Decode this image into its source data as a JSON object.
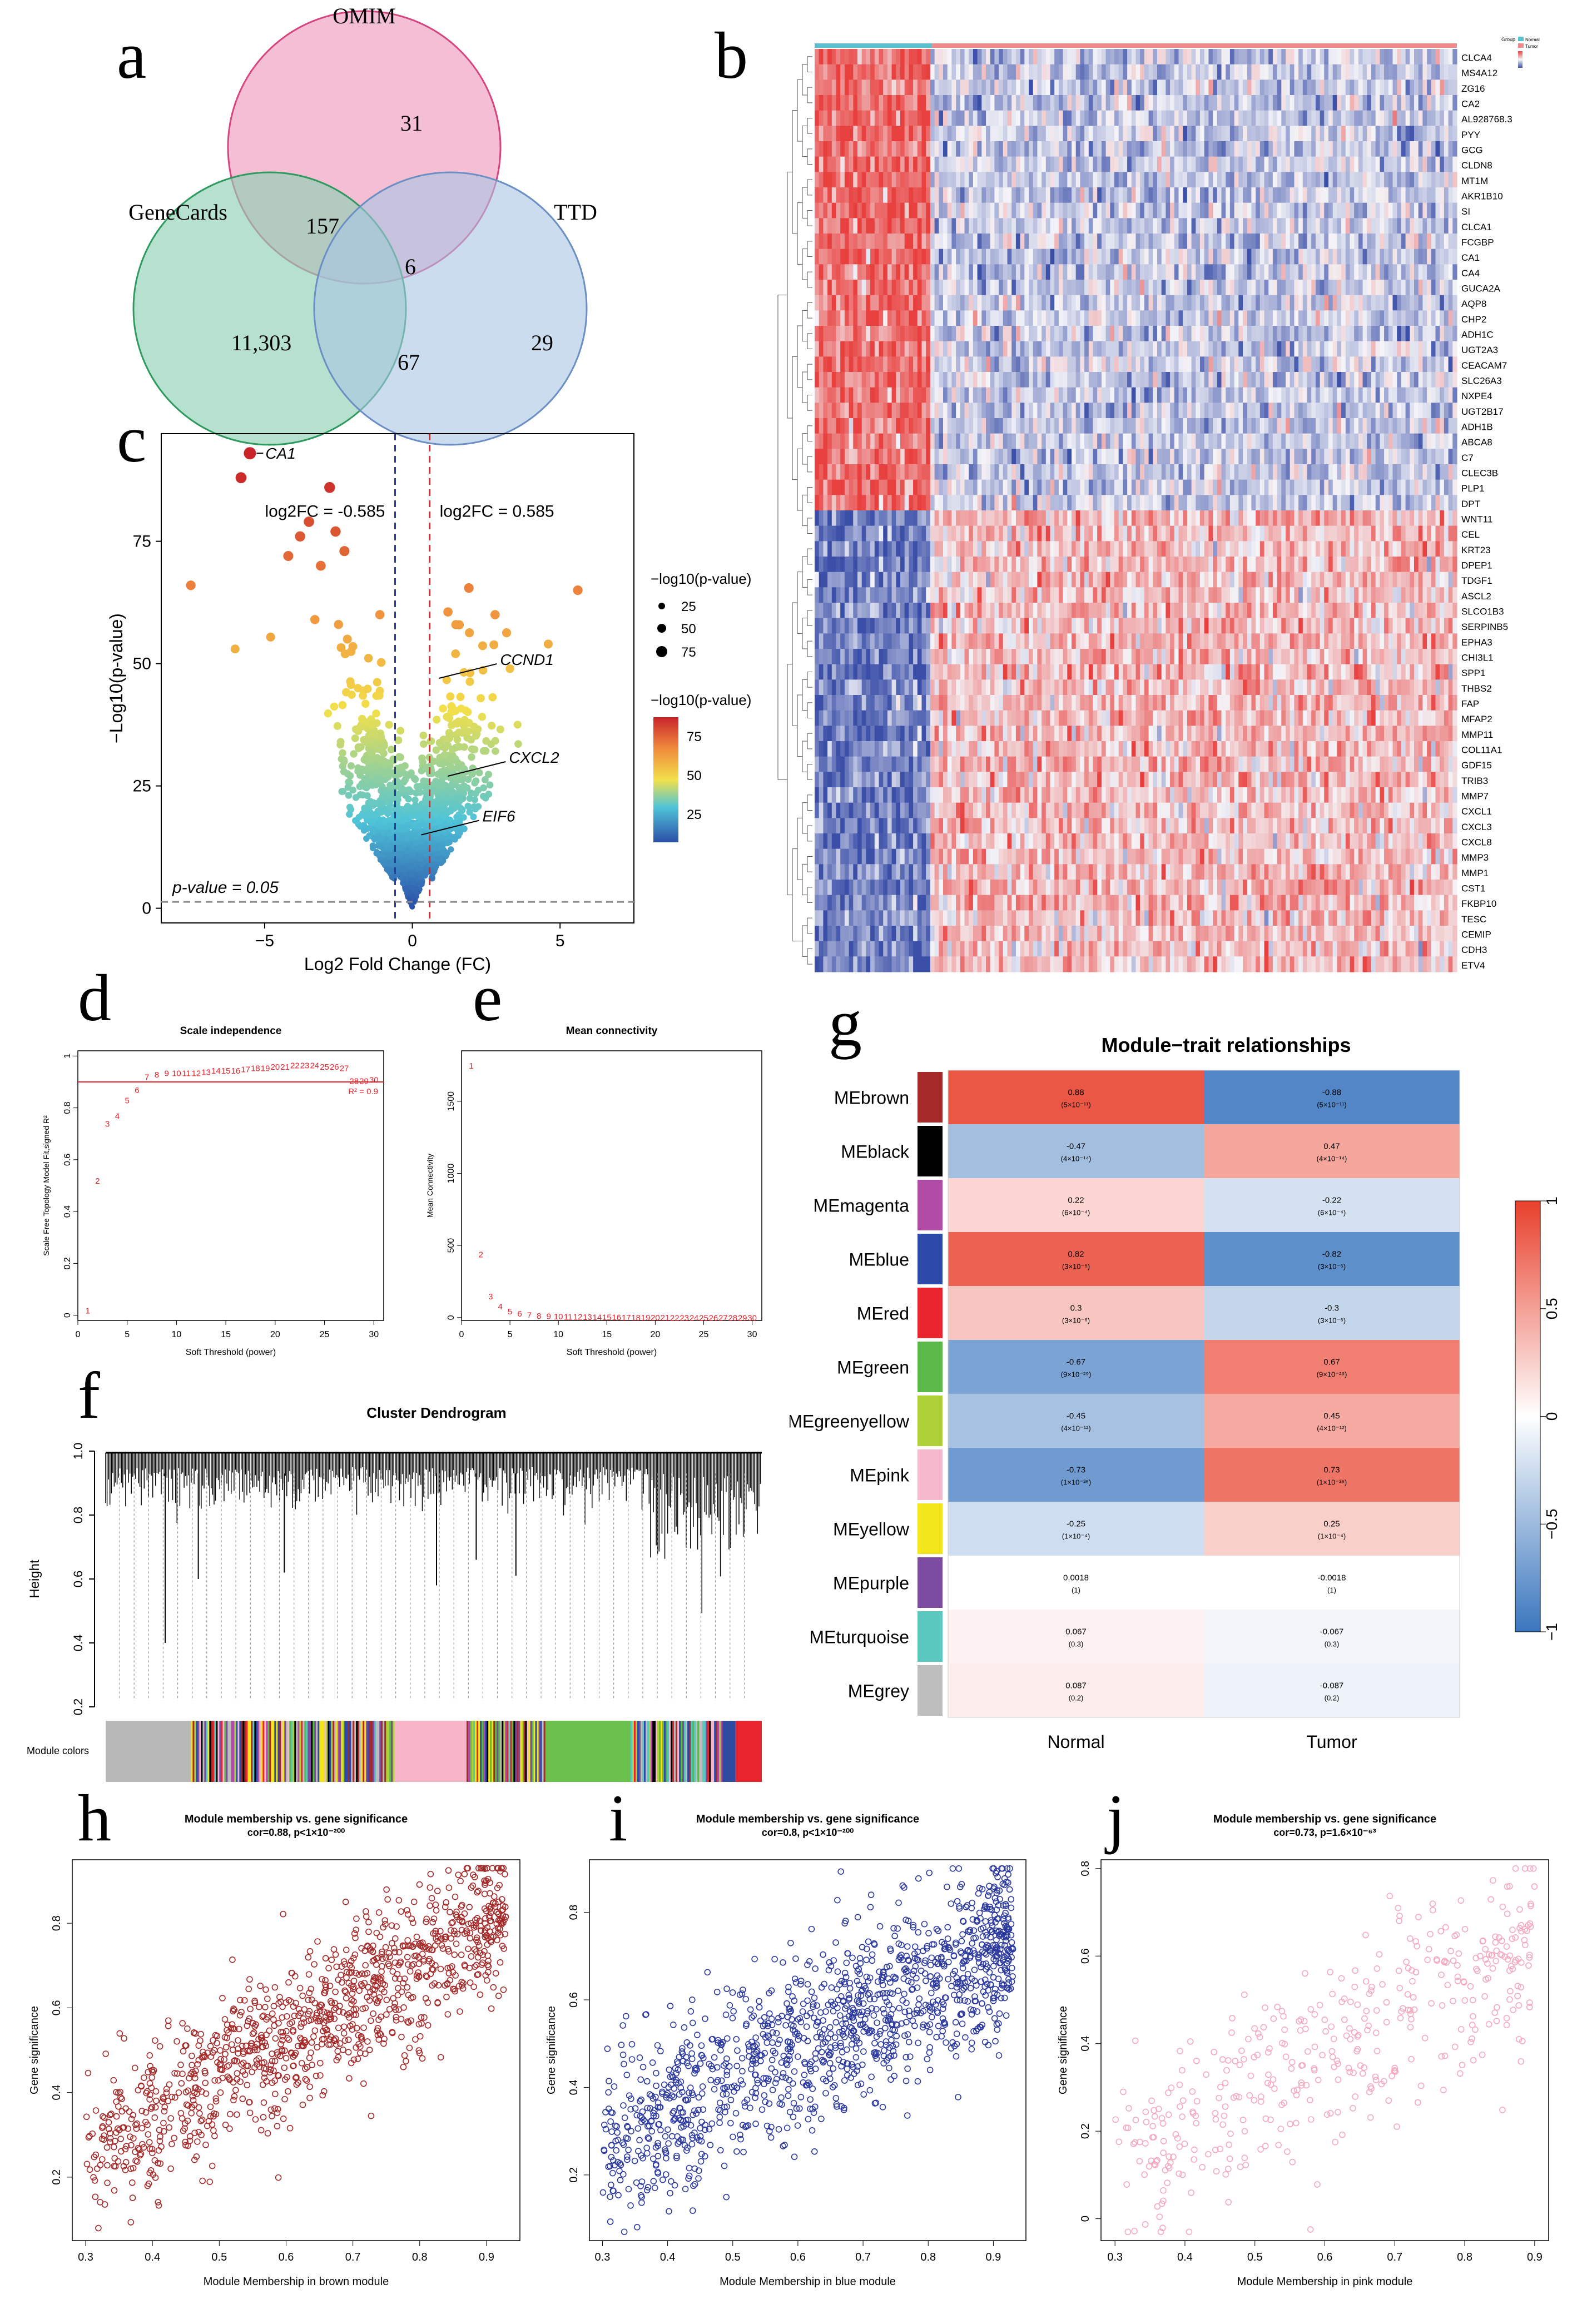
{
  "panel_labels": {
    "a": "a",
    "b": "b",
    "c": "c",
    "d": "d",
    "e": "e",
    "f": "f",
    "g": "g",
    "h": "h",
    "i": "i",
    "j": "j"
  },
  "venn": {
    "sets": [
      "OMIM",
      "GeneCards",
      "TTD"
    ],
    "regions": {
      "omim_only": "31",
      "genecards_only": "11,303",
      "ttd_only": "29",
      "omim_genecards": "157",
      "genecards_ttd": "67",
      "all": "6"
    },
    "colors": {
      "omim": "#ee9bbd",
      "genecards": "#8fd1b5",
      "ttd": "#a9c4e3"
    }
  },
  "heatmap": {
    "genes": [
      "CLCA4",
      "MS4A12",
      "ZG16",
      "CA2",
      "AL928768.3",
      "PYY",
      "GCG",
      "CLDN8",
      "MT1M",
      "AKR1B10",
      "SI",
      "CLCA1",
      "FCGBP",
      "CA1",
      "CA4",
      "GUCA2A",
      "AQP8",
      "CHP2",
      "ADH1C",
      "UGT2A3",
      "CEACAM7",
      "SLC26A3",
      "NXPE4",
      "UGT2B17",
      "ADH1B",
      "ABCA8",
      "C7",
      "CLEC3B",
      "PLP1",
      "DPT",
      "WNT11",
      "CEL",
      "KRT23",
      "DPEP1",
      "TDGF1",
      "ASCL2",
      "SLCO1B3",
      "SERPINB5",
      "EPHA3",
      "CHI3L1",
      "SPP1",
      "THBS2",
      "FAP",
      "MFAP2",
      "MMP11",
      "COL11A1",
      "GDF15",
      "TRIB3",
      "MMP7",
      "CXCL1",
      "CXCL3",
      "CXCL8",
      "MMP3",
      "MMP1",
      "CST1",
      "FKBP10",
      "TESC",
      "CEMIP",
      "CDH3",
      "ETV4"
    ],
    "legend": {
      "title": "Group",
      "normal": "Normal",
      "tumor": "Tumor"
    },
    "colors": {
      "high": "#e8403e",
      "low": "#3b4fa8",
      "mid": "#f4f4f8",
      "normal_bar": "#5bc0cf",
      "tumor_bar": "#f08a8a"
    }
  },
  "chart_data": [
    {
      "id": "volcano",
      "type": "scatter",
      "xlabel": "Log2 Fold Change (FC)",
      "ylabel": "−Log10(p-value)",
      "xticks": [
        "−5",
        "0",
        "5"
      ],
      "yticks": [
        "0",
        "25",
        "50",
        "75"
      ],
      "xlim": [
        -8.5,
        7.5
      ],
      "ylim": [
        -3,
        97
      ],
      "thresholds": {
        "left": "log2FC = -0.585",
        "right": "log2FC = 0.585",
        "p": "p-value = 0.05",
        "left_x": -0.585,
        "right_x": 0.585,
        "p_y": 1.3
      },
      "annotations": [
        {
          "label": "CA1",
          "x": -5.5,
          "y": 93
        },
        {
          "label": "CCND1",
          "x": 0.9,
          "y": 47
        },
        {
          "label": "CXCL2",
          "x": 1.2,
          "y": 27
        },
        {
          "label": "EIF6",
          "x": 0.3,
          "y": 15
        }
      ],
      "size_legend": {
        "title": "−log10(p-value)",
        "values": [
          "25",
          "50",
          "75"
        ]
      },
      "color_legend": {
        "title": "−log10(p-value)",
        "values": [
          "75",
          "50",
          "25"
        ]
      }
    },
    {
      "id": "scale-independence",
      "type": "scatter",
      "title": "Scale independence",
      "xlabel": "Soft Threshold (power)",
      "ylabel": "Scale Free Topology Model Fit,signed R²",
      "xticks": [
        "0",
        "5",
        "10",
        "15",
        "20",
        "25",
        "30"
      ],
      "yticks": [
        "0",
        "0.2",
        "0.4",
        "0.6",
        "0.8",
        "1"
      ],
      "xlim": [
        0,
        31
      ],
      "ylim": [
        -0.02,
        1.02
      ],
      "hline": 0.9,
      "hline_label": "R² = 0.9",
      "x": [
        1,
        2,
        3,
        4,
        5,
        6,
        7,
        8,
        9,
        10,
        11,
        12,
        13,
        14,
        15,
        16,
        17,
        18,
        19,
        20,
        21,
        22,
        23,
        24,
        25,
        26,
        27,
        28,
        29,
        30
      ],
      "values": [
        0.02,
        0.52,
        0.74,
        0.77,
        0.83,
        0.87,
        0.92,
        0.93,
        0.935,
        0.935,
        0.935,
        0.935,
        0.94,
        0.945,
        0.945,
        0.945,
        0.95,
        0.955,
        0.955,
        0.96,
        0.96,
        0.965,
        0.965,
        0.965,
        0.96,
        0.96,
        0.955,
        0.905,
        0.905,
        0.91
      ]
    },
    {
      "id": "mean-connectivity",
      "type": "scatter",
      "title": "Mean connectivity",
      "xlabel": "Soft Threshold (power)",
      "ylabel": "Mean Connectivity",
      "xticks": [
        "0",
        "5",
        "10",
        "15",
        "20",
        "25",
        "30"
      ],
      "yticks": [
        "0",
        "500",
        "1000",
        "1500"
      ],
      "xlim": [
        0,
        31
      ],
      "ylim": [
        -20,
        1850
      ],
      "x": [
        1,
        2,
        3,
        4,
        5,
        6,
        7,
        8,
        9,
        10,
        11,
        12,
        13,
        14,
        15,
        16,
        17,
        18,
        19,
        20,
        21,
        22,
        23,
        24,
        25,
        26,
        27,
        28,
        29,
        30
      ],
      "values": [
        1750,
        440,
        150,
        80,
        45,
        30,
        20,
        15,
        12,
        10,
        9,
        8,
        7,
        6,
        5,
        5,
        4,
        4,
        3,
        3,
        3,
        2,
        2,
        2,
        2,
        2,
        1,
        1,
        1,
        1
      ]
    },
    {
      "id": "dendrogram",
      "type": "dendrogram",
      "title": "Cluster Dendrogram",
      "ylabel": "Height",
      "yticks": [
        "0.2",
        "0.4",
        "0.6",
        "0.8",
        "1.0"
      ],
      "ylim": [
        0.2,
        1.0
      ],
      "module_colors_label": "Module colors",
      "module_blocks": [
        {
          "color": "#b8b8b8",
          "fraction": 0.13
        },
        {
          "color": "mixed",
          "fraction": 0.31
        },
        {
          "color": "#f7b6c8",
          "fraction": 0.11
        },
        {
          "color": "mixed2",
          "fraction": 0.12
        },
        {
          "color": "#6ac04a",
          "fraction": 0.13
        },
        {
          "color": "mixed3",
          "fraction": 0.14
        },
        {
          "color": "#2f4aa0",
          "fraction": 0.02
        },
        {
          "color": "#e8242c",
          "fraction": 0.04
        }
      ]
    },
    {
      "id": "module-trait",
      "type": "heatmap",
      "title": "Module−trait relationships",
      "columns": [
        "Normal",
        "Tumor"
      ],
      "rows": [
        {
          "name": "MEbrown",
          "color": "#a52a2a",
          "values": [
            0.88,
            -0.88
          ],
          "labels": [
            "0.88",
            "-0.88"
          ],
          "p": [
            "(5×10⁻¹¹)",
            "(5×10⁻¹¹)"
          ]
        },
        {
          "name": "MEblack",
          "color": "#000000",
          "values": [
            -0.47,
            0.47
          ],
          "labels": [
            "-0.47",
            "0.47"
          ],
          "p": [
            "(4×10⁻¹⁴)",
            "(4×10⁻¹⁴)"
          ]
        },
        {
          "name": "MEmagenta",
          "color": "#b04ca5",
          "values": [
            0.22,
            -0.22
          ],
          "labels": [
            "0.22",
            "-0.22"
          ],
          "p": [
            "(6×10⁻⁴)",
            "(6×10⁻⁴)"
          ]
        },
        {
          "name": "MEblue",
          "color": "#2c4aa8",
          "values": [
            0.82,
            -0.82
          ],
          "labels": [
            "0.82",
            "-0.82"
          ],
          "p": [
            "(3×10⁻⁵)",
            "(3×10⁻⁵)"
          ]
        },
        {
          "name": "MEred",
          "color": "#e8242c",
          "values": [
            0.3,
            -0.3
          ],
          "labels": [
            "0.3",
            "-0.3"
          ],
          "p": [
            "(3×10⁻⁶)",
            "(3×10⁻⁶)"
          ]
        },
        {
          "name": "MEgreen",
          "color": "#5cb848",
          "values": [
            -0.67,
            0.67
          ],
          "labels": [
            "-0.67",
            "0.67"
          ],
          "p": [
            "(9×10⁻²⁹)",
            "(9×10⁻²⁹)"
          ]
        },
        {
          "name": "MEgreenyellow",
          "color": "#add136",
          "values": [
            -0.45,
            0.45
          ],
          "labels": [
            "-0.45",
            "0.45"
          ],
          "p": [
            "(4×10⁻¹²)",
            "(4×10⁻¹²)"
          ]
        },
        {
          "name": "MEpink",
          "color": "#f6b8cc",
          "values": [
            -0.73,
            0.73
          ],
          "labels": [
            "-0.73",
            "0.73"
          ],
          "p": [
            "(1×10⁻³⁶)",
            "(1×10⁻³⁶)"
          ]
        },
        {
          "name": "MEyellow",
          "color": "#f2e51c",
          "values": [
            -0.25,
            0.25
          ],
          "labels": [
            "-0.25",
            "0.25"
          ],
          "p": [
            "(1×10⁻⁴)",
            "(1×10⁻⁴)"
          ]
        },
        {
          "name": "MEpurple",
          "color": "#7a4b9e",
          "values": [
            0.0018,
            -0.0018
          ],
          "labels": [
            "0.0018",
            "-0.0018"
          ],
          "p": [
            "(1)",
            "(1)"
          ]
        },
        {
          "name": "MEturquoise",
          "color": "#5bc8c0",
          "values": [
            0.067,
            -0.067
          ],
          "labels": [
            "0.067",
            "-0.067"
          ],
          "p": [
            "(0.3)",
            "(0.3)"
          ]
        },
        {
          "name": "MEgrey",
          "color": "#bebebe",
          "values": [
            0.087,
            -0.087
          ],
          "labels": [
            "0.087",
            "-0.087"
          ],
          "p": [
            "(0.2)",
            "(0.2)"
          ]
        }
      ],
      "colorbar": {
        "ticks": [
          "1",
          "0.5",
          "0",
          "−0.5",
          "−1"
        ]
      }
    },
    {
      "id": "mm-gs-brown",
      "type": "scatter",
      "title": "Module membership vs. gene significance",
      "subtitle": "cor=0.88, p<1×10⁻²⁰⁰",
      "xlabel": "Module Membership in brown module",
      "ylabel": "Gene significance",
      "xticks": [
        "0.3",
        "0.4",
        "0.5",
        "0.6",
        "0.7",
        "0.8",
        "0.9"
      ],
      "yticks": [
        "0.2",
        "0.4",
        "0.6",
        "0.8"
      ],
      "xlim": [
        0.28,
        0.95
      ],
      "ylim": [
        0.05,
        0.95
      ],
      "color": "#a52a2a",
      "trend": {
        "x0": 0.3,
        "y0": 0.25,
        "x1": 0.9,
        "y1": 0.8,
        "spread": 0.09,
        "n": 1100
      }
    },
    {
      "id": "mm-gs-blue",
      "type": "scatter",
      "title": "Module membership vs. gene significance",
      "subtitle": "cor=0.8, p<1×10⁻²⁰⁰",
      "xlabel": "Module Membership in blue module",
      "ylabel": "Gene significance",
      "xticks": [
        "0.3",
        "0.4",
        "0.5",
        "0.6",
        "0.7",
        "0.8",
        "0.9"
      ],
      "yticks": [
        "0.2",
        "0.4",
        "0.6",
        "0.8"
      ],
      "xlim": [
        0.28,
        0.95
      ],
      "ylim": [
        0.05,
        0.92
      ],
      "color": "#2c3aa0",
      "trend": {
        "x0": 0.3,
        "y0": 0.28,
        "x1": 0.92,
        "y1": 0.72,
        "spread": 0.1,
        "n": 1300
      }
    },
    {
      "id": "mm-gs-pink",
      "type": "scatter",
      "title": "Module membership vs. gene significance",
      "subtitle": "cor=0.73, p=1.6×10⁻⁶³",
      "xlabel": "Module Membership in pink module",
      "ylabel": "Gene significance",
      "xticks": [
        "0.3",
        "0.4",
        "0.5",
        "0.6",
        "0.7",
        "0.8",
        "0.9"
      ],
      "yticks": [
        "0",
        "0.2",
        "0.4",
        "0.6",
        "0.8"
      ],
      "xlim": [
        0.28,
        0.92
      ],
      "ylim": [
        -0.05,
        0.82
      ],
      "color": "#f4a9bf",
      "trend": {
        "x0": 0.3,
        "y0": 0.12,
        "x1": 0.88,
        "y1": 0.62,
        "spread": 0.11,
        "n": 420
      }
    }
  ]
}
